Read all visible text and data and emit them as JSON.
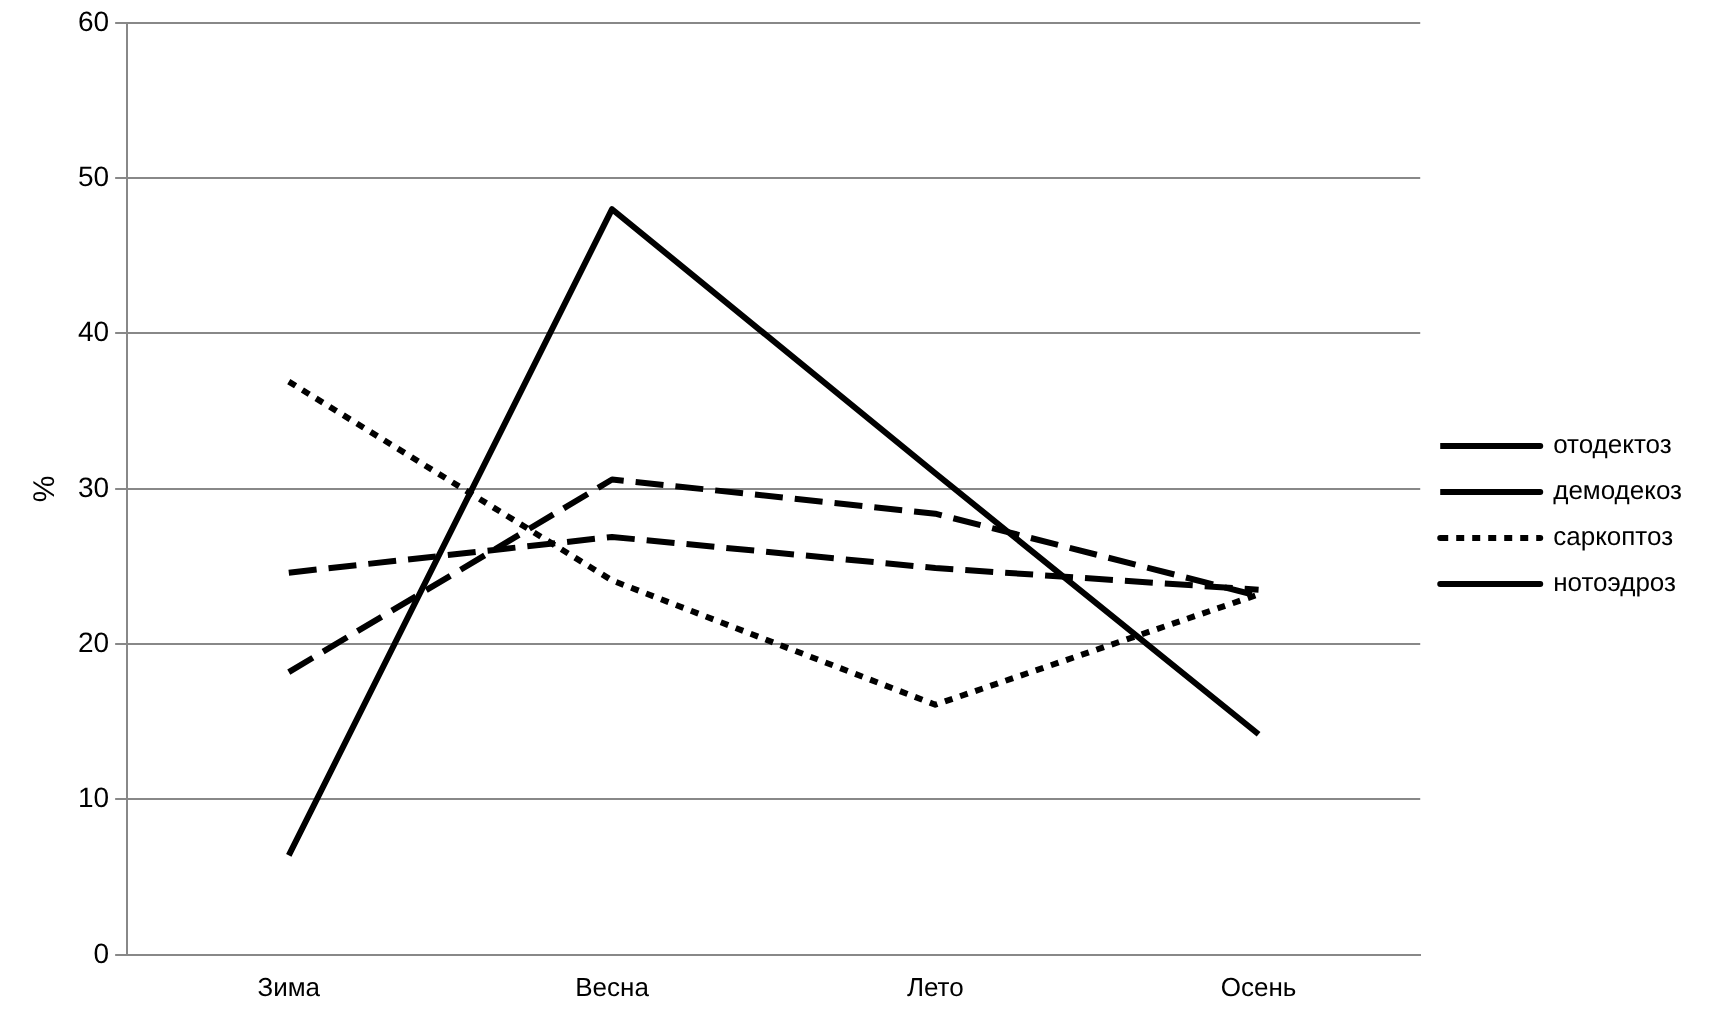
{
  "chart_data": {
    "type": "line",
    "ylabel": "%",
    "categories": [
      "Зима",
      "Весна",
      "Лето",
      "Осень"
    ],
    "series": [
      {
        "name": "отодектоз",
        "color": "#000000",
        "line_style": "dashed",
        "values": [
          24.6,
          26.9,
          24.9,
          23.5
        ]
      },
      {
        "name": "демодекоз",
        "color": "#000000",
        "line_style": "dashed",
        "values": [
          18.2,
          30.6,
          28.4,
          23.1
        ]
      },
      {
        "name": "саркоптоз",
        "color": "#000000",
        "line_style": "dotted",
        "values": [
          36.9,
          24.1,
          16.1,
          23.2
        ]
      },
      {
        "name": "нотоэдроз",
        "color": "#000000",
        "line_style": "solid",
        "values": [
          6.4,
          48,
          31,
          14.2
        ]
      }
    ],
    "ylim": [
      0,
      60
    ],
    "yticks": [
      0,
      10,
      20,
      30,
      40,
      50,
      60
    ],
    "grid": "y",
    "legend": "right",
    "marker": "none"
  }
}
